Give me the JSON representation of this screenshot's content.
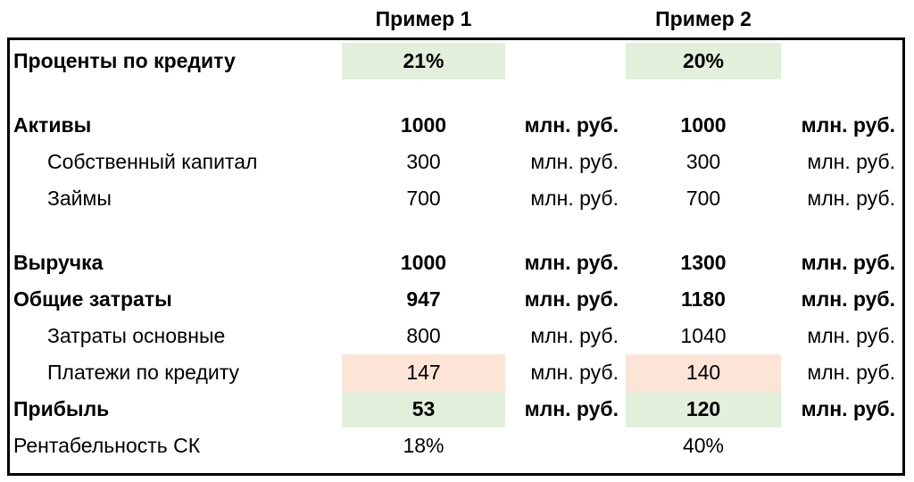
{
  "header": {
    "col1": "Пример 1",
    "col2": "Пример 2"
  },
  "colors": {
    "highlight_green": "#E2EFDA",
    "highlight_pink": "#FCE4D6",
    "border": "#000000"
  },
  "table": {
    "unit_label": "млн. руб.",
    "rows": [
      {
        "label": "Проценты по кредиту",
        "bold": true,
        "indent": false,
        "v1": "21%",
        "u1": "",
        "v2": "20%",
        "u2": "",
        "hl1": "green",
        "hl2": "green"
      },
      {
        "type": "spacer"
      },
      {
        "label": "Активы",
        "bold": true,
        "indent": false,
        "v1": "1000",
        "u1": "млн. руб.",
        "v2": "1000",
        "u2": "млн. руб.",
        "hl1": null,
        "hl2": null
      },
      {
        "label": "Собственный капитал",
        "bold": false,
        "indent": true,
        "v1": "300",
        "u1": "млн. руб.",
        "v2": "300",
        "u2": "млн. руб.",
        "hl1": null,
        "hl2": null
      },
      {
        "label": "Займы",
        "bold": false,
        "indent": true,
        "v1": "700",
        "u1": "млн. руб.",
        "v2": "700",
        "u2": "млн. руб.",
        "hl1": null,
        "hl2": null
      },
      {
        "type": "spacer"
      },
      {
        "label": "Выручка",
        "bold": true,
        "indent": false,
        "v1": "1000",
        "u1": "млн. руб.",
        "v2": "1300",
        "u2": "млн. руб.",
        "hl1": null,
        "hl2": null
      },
      {
        "label": "Общие затраты",
        "bold": true,
        "indent": false,
        "v1": "947",
        "u1": "млн. руб.",
        "v2": "1180",
        "u2": "млн. руб.",
        "hl1": null,
        "hl2": null
      },
      {
        "label": "Затраты основные",
        "bold": false,
        "indent": true,
        "v1": "800",
        "u1": "млн. руб.",
        "v2": "1040",
        "u2": "млн. руб.",
        "hl1": null,
        "hl2": null
      },
      {
        "label": "Платежи по кредиту",
        "bold": false,
        "indent": true,
        "v1": "147",
        "u1": "млн. руб.",
        "v2": "140",
        "u2": "млн. руб.",
        "hl1": "pink",
        "hl2": "pink"
      },
      {
        "label": "Прибыль",
        "bold": true,
        "indent": false,
        "v1": "53",
        "u1": "млн. руб.",
        "v2": "120",
        "u2": "млн. руб.",
        "hl1": "green",
        "hl2": "green"
      },
      {
        "label": "Рентабельность СК",
        "bold": false,
        "indent": false,
        "v1": "18%",
        "u1": "",
        "v2": "40%",
        "u2": "",
        "hl1": null,
        "hl2": null
      }
    ]
  }
}
